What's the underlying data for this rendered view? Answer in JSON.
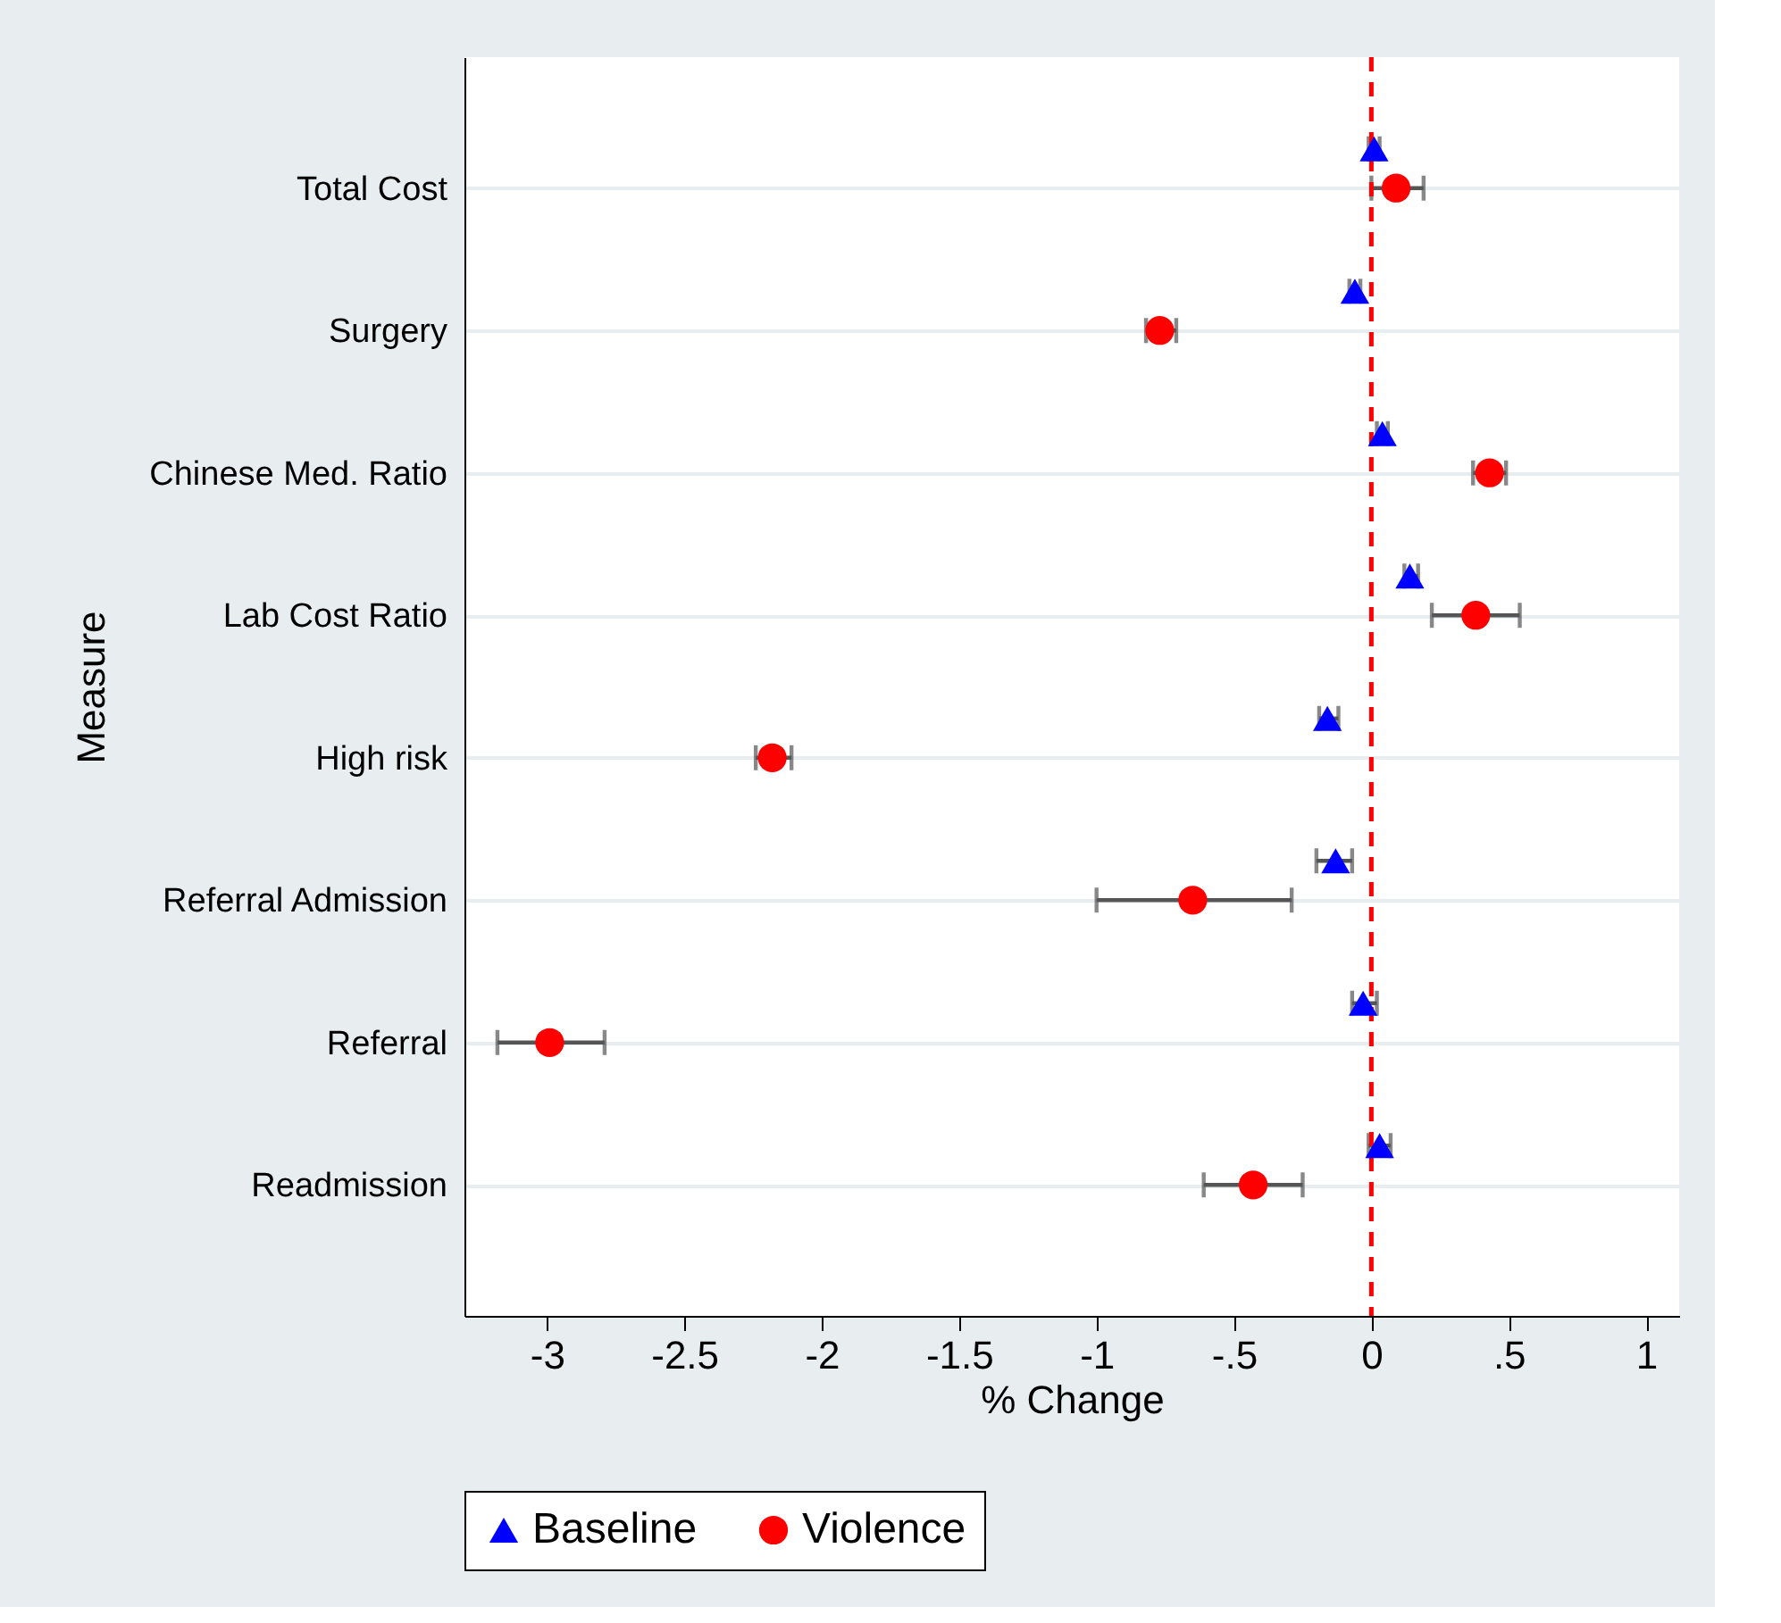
{
  "chart_data": {
    "type": "scatter",
    "categories": [
      "Total Cost",
      "Surgery",
      "Chinese Med. Ratio",
      "Lab Cost Ratio",
      "High risk",
      "Referral Admission",
      "Referral",
      "Readmission"
    ],
    "series": [
      {
        "name": "Baseline",
        "color": "#0000ff",
        "marker": "triangle",
        "values": [
          0.01,
          -0.06,
          0.04,
          0.14,
          -0.16,
          -0.13,
          -0.03,
          0.03
        ],
        "errors": [
          [
            -0.01,
            0.03
          ],
          [
            -0.08,
            -0.04
          ],
          [
            0.02,
            0.06
          ],
          [
            0.12,
            0.17
          ],
          [
            -0.19,
            -0.12
          ],
          [
            -0.2,
            -0.07
          ],
          [
            -0.07,
            0.02
          ],
          [
            -0.01,
            0.07
          ]
        ]
      },
      {
        "name": "Violence",
        "color": "#ff0000",
        "marker": "circle",
        "values": [
          0.09,
          -0.77,
          0.43,
          0.38,
          -2.18,
          -0.65,
          -2.99,
          -0.43
        ],
        "errors": [
          [
            0.0,
            0.19
          ],
          [
            -0.82,
            -0.71
          ],
          [
            0.37,
            0.49
          ],
          [
            0.22,
            0.54
          ],
          [
            -2.24,
            -2.11
          ],
          [
            -1.0,
            -0.29
          ],
          [
            -3.18,
            -2.79
          ],
          [
            -0.61,
            -0.25
          ]
        ]
      }
    ],
    "orientation": "horizontal",
    "xlabel": "% Change",
    "ylabel": "Measure",
    "xlim": [
      -3.3,
      1.12
    ],
    "xticks": [
      -3,
      -2.5,
      -2,
      -1.5,
      -1,
      {
        "value": -0.5,
        "label": "-.5"
      },
      0,
      {
        "value": 0.5,
        "label": ".5"
      },
      1
    ],
    "ref_lines": [
      {
        "axis": "x",
        "value": 0,
        "color": "#ff0000",
        "line_style": "dashed"
      }
    ],
    "grid": "y",
    "legend": "bottom"
  }
}
